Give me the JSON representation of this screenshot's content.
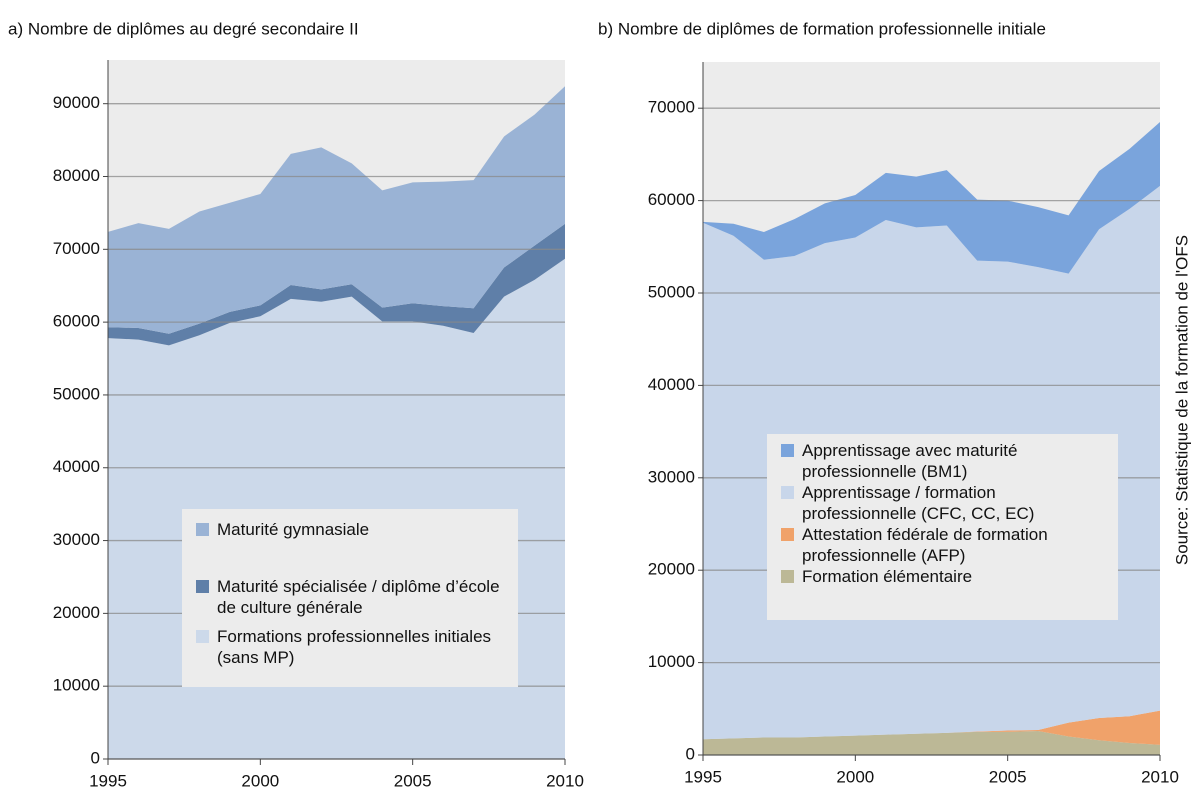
{
  "chart_data": [
    {
      "type": "stacked_area",
      "title": "a)  Nombre de diplômes au degré secondaire II",
      "x": [
        1995,
        1996,
        1997,
        1998,
        1999,
        2000,
        2001,
        2002,
        2003,
        2004,
        2005,
        2006,
        2007,
        2008,
        2009,
        2010
      ],
      "xlim": [
        1995,
        2010
      ],
      "xticks": [
        1995,
        2000,
        2005,
        2010
      ],
      "ylim": [
        0,
        96000
      ],
      "yticks": [
        0,
        10000,
        20000,
        30000,
        40000,
        50000,
        60000,
        70000,
        80000,
        90000
      ],
      "grid": true,
      "series": [
        {
          "name": "Formations professionnelles initiales (sans MP)",
          "color": "#ccd9ea",
          "values": [
            57800,
            57600,
            56800,
            58200,
            59900,
            60800,
            63200,
            62800,
            63500,
            60100,
            60100,
            59500,
            58500,
            63500,
            65800,
            68700
          ]
        },
        {
          "name": "Maturité spécialisée / diplôme d’école de culture générale",
          "color": "#5f7fa8",
          "values": [
            1500,
            1600,
            1600,
            1600,
            1500,
            1500,
            1900,
            1700,
            1700,
            1900,
            2500,
            2700,
            3400,
            4000,
            4700,
            4800
          ]
        },
        {
          "name": "Maturité gymnasiale",
          "color": "#9ab3d5",
          "values": [
            13100,
            14400,
            14400,
            15400,
            15000,
            15300,
            18000,
            19500,
            16600,
            16100,
            16600,
            17100,
            17600,
            18000,
            18000,
            18900
          ]
        }
      ]
    },
    {
      "type": "stacked_area",
      "title": "b)  Nombre de diplômes de formation professionnelle initiale",
      "x": [
        1995,
        1996,
        1997,
        1998,
        1999,
        2000,
        2001,
        2002,
        2003,
        2004,
        2005,
        2006,
        2007,
        2008,
        2009,
        2010
      ],
      "xlim": [
        1995,
        2010
      ],
      "xticks": [
        1995,
        2000,
        2005,
        2010
      ],
      "ylim": [
        0,
        75000
      ],
      "yticks": [
        0,
        10000,
        20000,
        30000,
        40000,
        50000,
        60000,
        70000
      ],
      "grid": true,
      "source": "Source: Statistique de la formation de l'OFS",
      "series": [
        {
          "name": "Formation élémentaire",
          "color": "#bcb896",
          "values": [
            1700,
            1800,
            1900,
            1900,
            2000,
            2100,
            2200,
            2300,
            2400,
            2500,
            2500,
            2600,
            2000,
            1600,
            1300,
            1100
          ]
        },
        {
          "name": "Attestation fédérale de formation professionnelle (AFP)",
          "color": "#f0a26a",
          "values": [
            0,
            0,
            0,
            0,
            0,
            0,
            0,
            0,
            0,
            50,
            150,
            100,
            1500,
            2400,
            2900,
            3700
          ]
        },
        {
          "name": "Apprentissage / formation professionnelle (CFC, CC, EC)",
          "color": "#c8d6ea",
          "values": [
            55900,
            54400,
            51700,
            52100,
            53400,
            53900,
            55700,
            54800,
            54900,
            50950,
            50750,
            50100,
            48600,
            52900,
            54900,
            56800
          ]
        },
        {
          "name": "Apprentissage avec maturité professionnelle (BM1)",
          "color": "#7aa4dc",
          "values": [
            100,
            1300,
            3000,
            4000,
            4300,
            4600,
            5100,
            5500,
            6000,
            6600,
            6600,
            6500,
            6300,
            6300,
            6500,
            6900
          ]
        }
      ]
    }
  ]
}
